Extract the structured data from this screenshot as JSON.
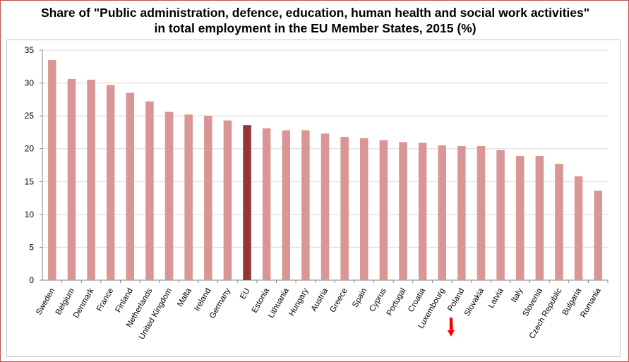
{
  "chart_data": {
    "type": "bar",
    "title": [
      "Share of \"Public administration, defence, education, human health and social work activities\"",
      "in total employment in the EU Member States, 2015 (%)"
    ],
    "categories": [
      "Sweden",
      "Belgium",
      "Denmark",
      "France",
      "Finland",
      "Netherlands",
      "United Kingdom",
      "Malta",
      "Ireland",
      "Germany",
      "EU",
      "Estonia",
      "Lithuania",
      "Hungary",
      "Austria",
      "Greece",
      "Spain",
      "Cyprus",
      "Portugal",
      "Croatia",
      "Luxembourg",
      "Poland",
      "Slovakia",
      "Latvia",
      "Italy",
      "Slovenia",
      "Czech Republic",
      "Bulgaria",
      "Romania"
    ],
    "values": [
      33.5,
      30.6,
      30.5,
      29.7,
      28.5,
      27.2,
      25.6,
      25.2,
      25.0,
      24.3,
      23.6,
      23.1,
      22.8,
      22.8,
      22.3,
      21.8,
      21.6,
      21.3,
      21.0,
      20.9,
      20.5,
      20.4,
      20.4,
      19.8,
      18.9,
      18.9,
      17.7,
      15.8,
      13.6
    ],
    "highlight_category": "EU",
    "ylim": [
      0,
      35
    ],
    "yticks": [
      0,
      5,
      10,
      15,
      20,
      25,
      30,
      35
    ],
    "grid": true,
    "legend": "none",
    "colors": {
      "bar": "#d99694",
      "highlight": "#943634",
      "grid": "#d9d9d9",
      "marker": "#ff0000"
    },
    "annotation": {
      "type": "red-arrow-marker",
      "category": "Poland"
    }
  }
}
